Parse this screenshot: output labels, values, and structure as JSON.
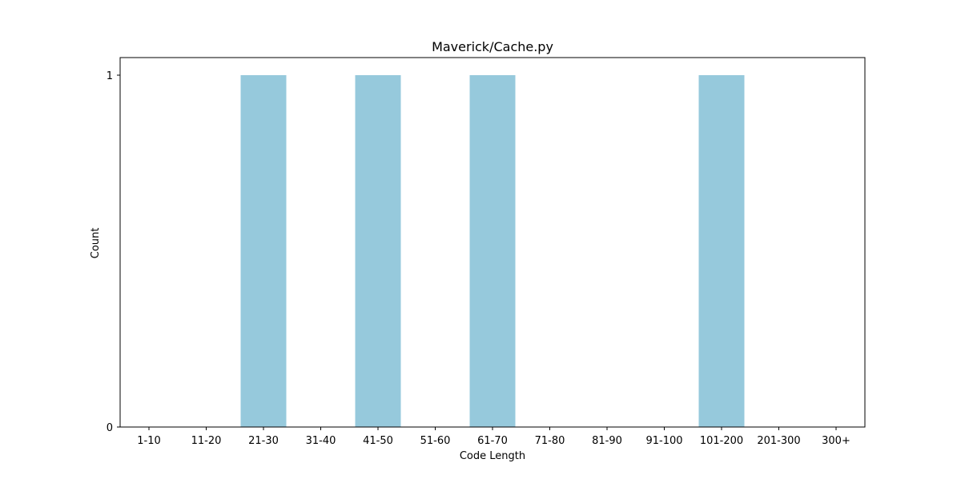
{
  "chart_data": {
    "type": "bar",
    "title": "Maverick/Cache.py",
    "xlabel": "Code Length",
    "ylabel": "Count",
    "categories": [
      "1-10",
      "11-20",
      "21-30",
      "31-40",
      "41-50",
      "51-60",
      "61-70",
      "71-80",
      "81-90",
      "91-100",
      "101-200",
      "201-300",
      "300+"
    ],
    "values": [
      0,
      0,
      1,
      0,
      1,
      0,
      1,
      0,
      0,
      0,
      1,
      0,
      0
    ],
    "ylim": [
      0,
      1
    ],
    "yticks": [
      0,
      1
    ],
    "grid": false,
    "legend": "none",
    "colors": {
      "bar": "#96c9dc",
      "axis": "#000000"
    }
  }
}
